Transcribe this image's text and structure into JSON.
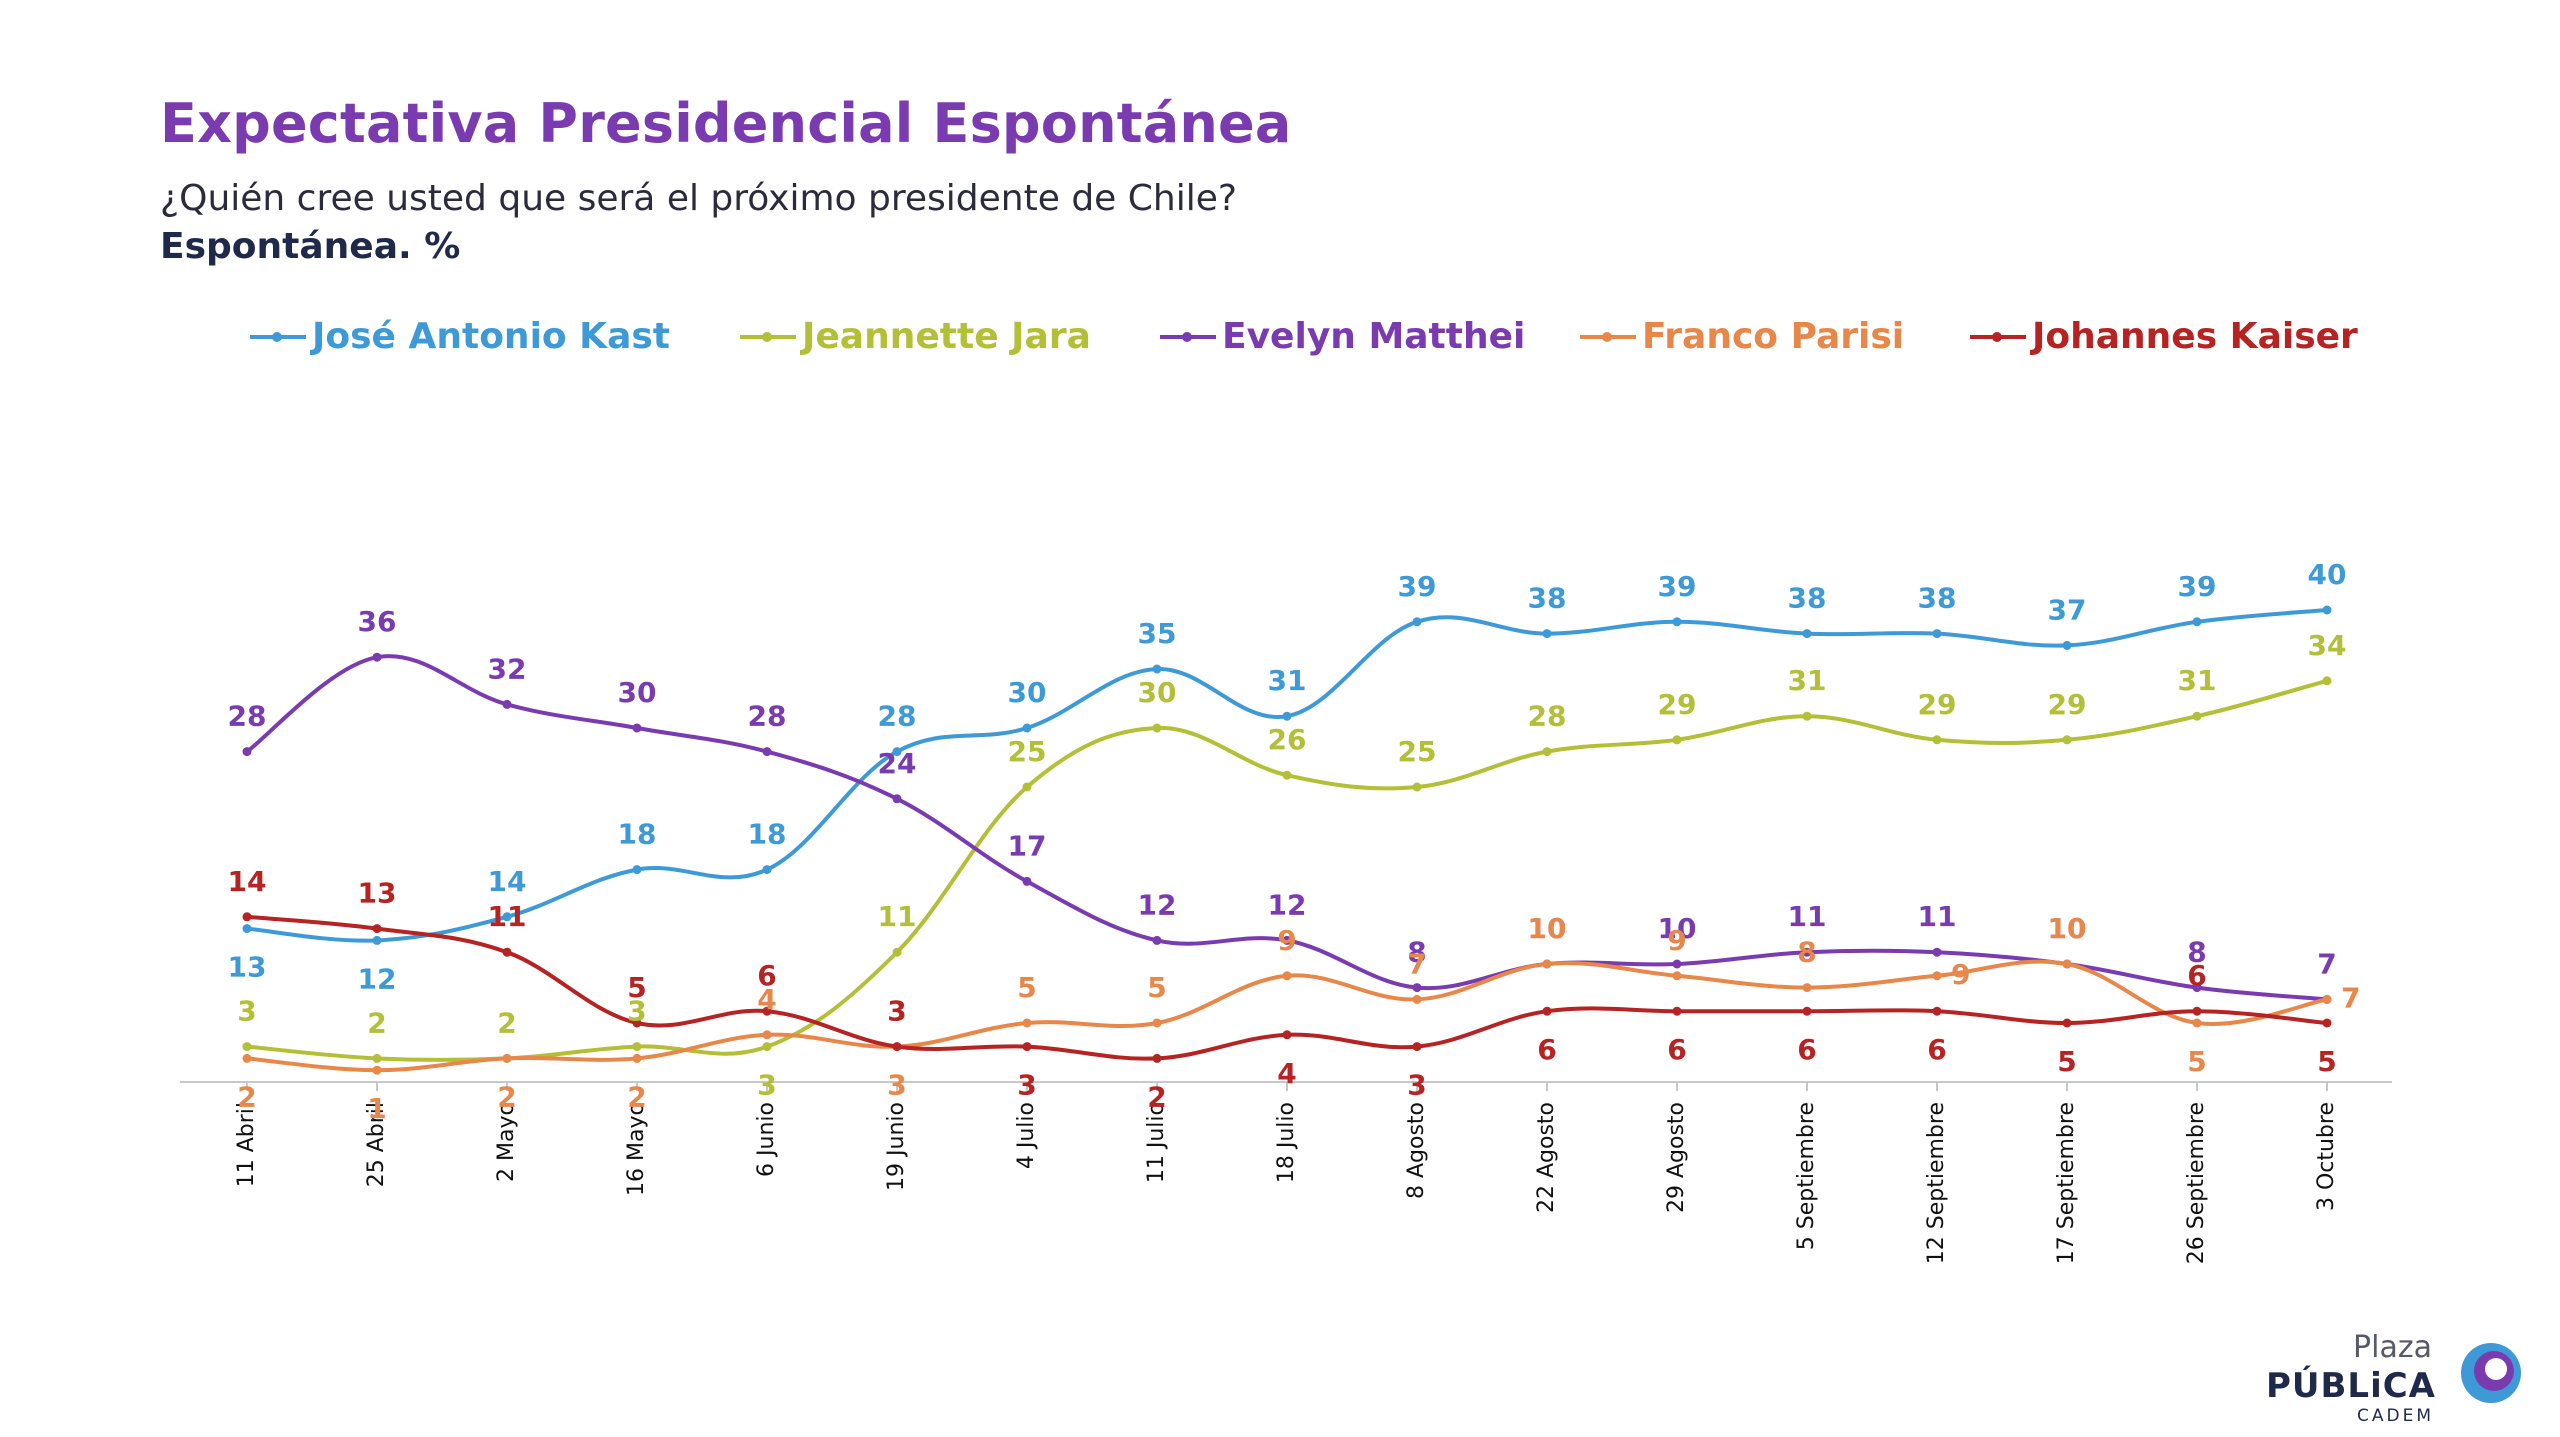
{
  "header": {
    "title": "Expectativa Presidencial Espontánea",
    "subtitle": "¿Quién cree usted que será el próximo presidente de Chile?",
    "unit": "Espontánea. %"
  },
  "logo": {
    "plaza": "Plaza",
    "publica": "PÚBLiCA",
    "cadem": "CADEM"
  },
  "chart_data": {
    "type": "line",
    "title": "Expectativa Presidencial Espontánea",
    "xlabel": "",
    "ylabel": "",
    "ylim": [
      0,
      45
    ],
    "grid": false,
    "legend_position": "top",
    "categories": [
      "11 Abril",
      "25 Abril",
      "2 Mayo",
      "16 Mayo",
      "6 Junio",
      "19 Junio",
      "4 Julio",
      "11 Julio",
      "18 Julio",
      "8 Agosto",
      "22 Agosto",
      "29 Agosto",
      "5 Septiembre",
      "12 Septiembre",
      "17 Septiembre",
      "26 Septiembre",
      "3 Octubre"
    ],
    "series": [
      {
        "name": "José Antonio Kast",
        "color": "#3e9ad6",
        "values": [
          13,
          12,
          14,
          18,
          18,
          28,
          30,
          35,
          31,
          39,
          38,
          39,
          38,
          38,
          37,
          39,
          40
        ],
        "label_pos": [
          1,
          1,
          -1,
          -1,
          -1,
          -1,
          -1,
          -1,
          -1,
          -1,
          -1,
          -1,
          -1,
          -1,
          -1,
          -1,
          -1
        ]
      },
      {
        "name": "Jeannette Jara",
        "color": "#b2bf37",
        "values": [
          3,
          2,
          2,
          3,
          3,
          11,
          25,
          30,
          26,
          25,
          28,
          29,
          31,
          29,
          29,
          31,
          34
        ],
        "label_pos": [
          -1,
          -1,
          -1,
          -1,
          1,
          -1,
          -1,
          -1,
          -1,
          -1,
          -1,
          -1,
          -1,
          -1,
          -1,
          -1,
          -1
        ]
      },
      {
        "name": "Evelyn Matthei",
        "color": "#7a3bb0",
        "values": [
          28,
          36,
          32,
          30,
          28,
          24,
          17,
          12,
          12,
          8,
          10,
          10,
          11,
          11,
          10,
          8,
          7
        ],
        "label_pos": [
          -1,
          -1,
          -1,
          -1,
          -1,
          -1,
          -1,
          -1,
          -1,
          -1,
          -1,
          -1,
          -1,
          -1,
          -1,
          -1,
          -1
        ]
      },
      {
        "name": "Franco Parisi",
        "color": "#e8874a",
        "values": [
          2,
          1,
          2,
          2,
          4,
          3,
          5,
          5,
          9,
          7,
          10,
          9,
          8,
          9,
          10,
          5,
          7
        ],
        "label_pos": [
          1,
          1,
          1,
          1,
          -1,
          1,
          -1,
          -1,
          -1,
          -1,
          -1,
          -1,
          -1,
          0,
          -1,
          1,
          0
        ]
      },
      {
        "name": "Johannes Kaiser",
        "color": "#b52323",
        "values": [
          14,
          13,
          11,
          5,
          6,
          3,
          3,
          2,
          4,
          3,
          6,
          6,
          6,
          6,
          5,
          6,
          5
        ],
        "label_pos": [
          -1,
          -1,
          -1,
          -1,
          -1,
          -1,
          1,
          1,
          1,
          1,
          1,
          1,
          1,
          1,
          1,
          -1,
          1
        ]
      }
    ]
  }
}
